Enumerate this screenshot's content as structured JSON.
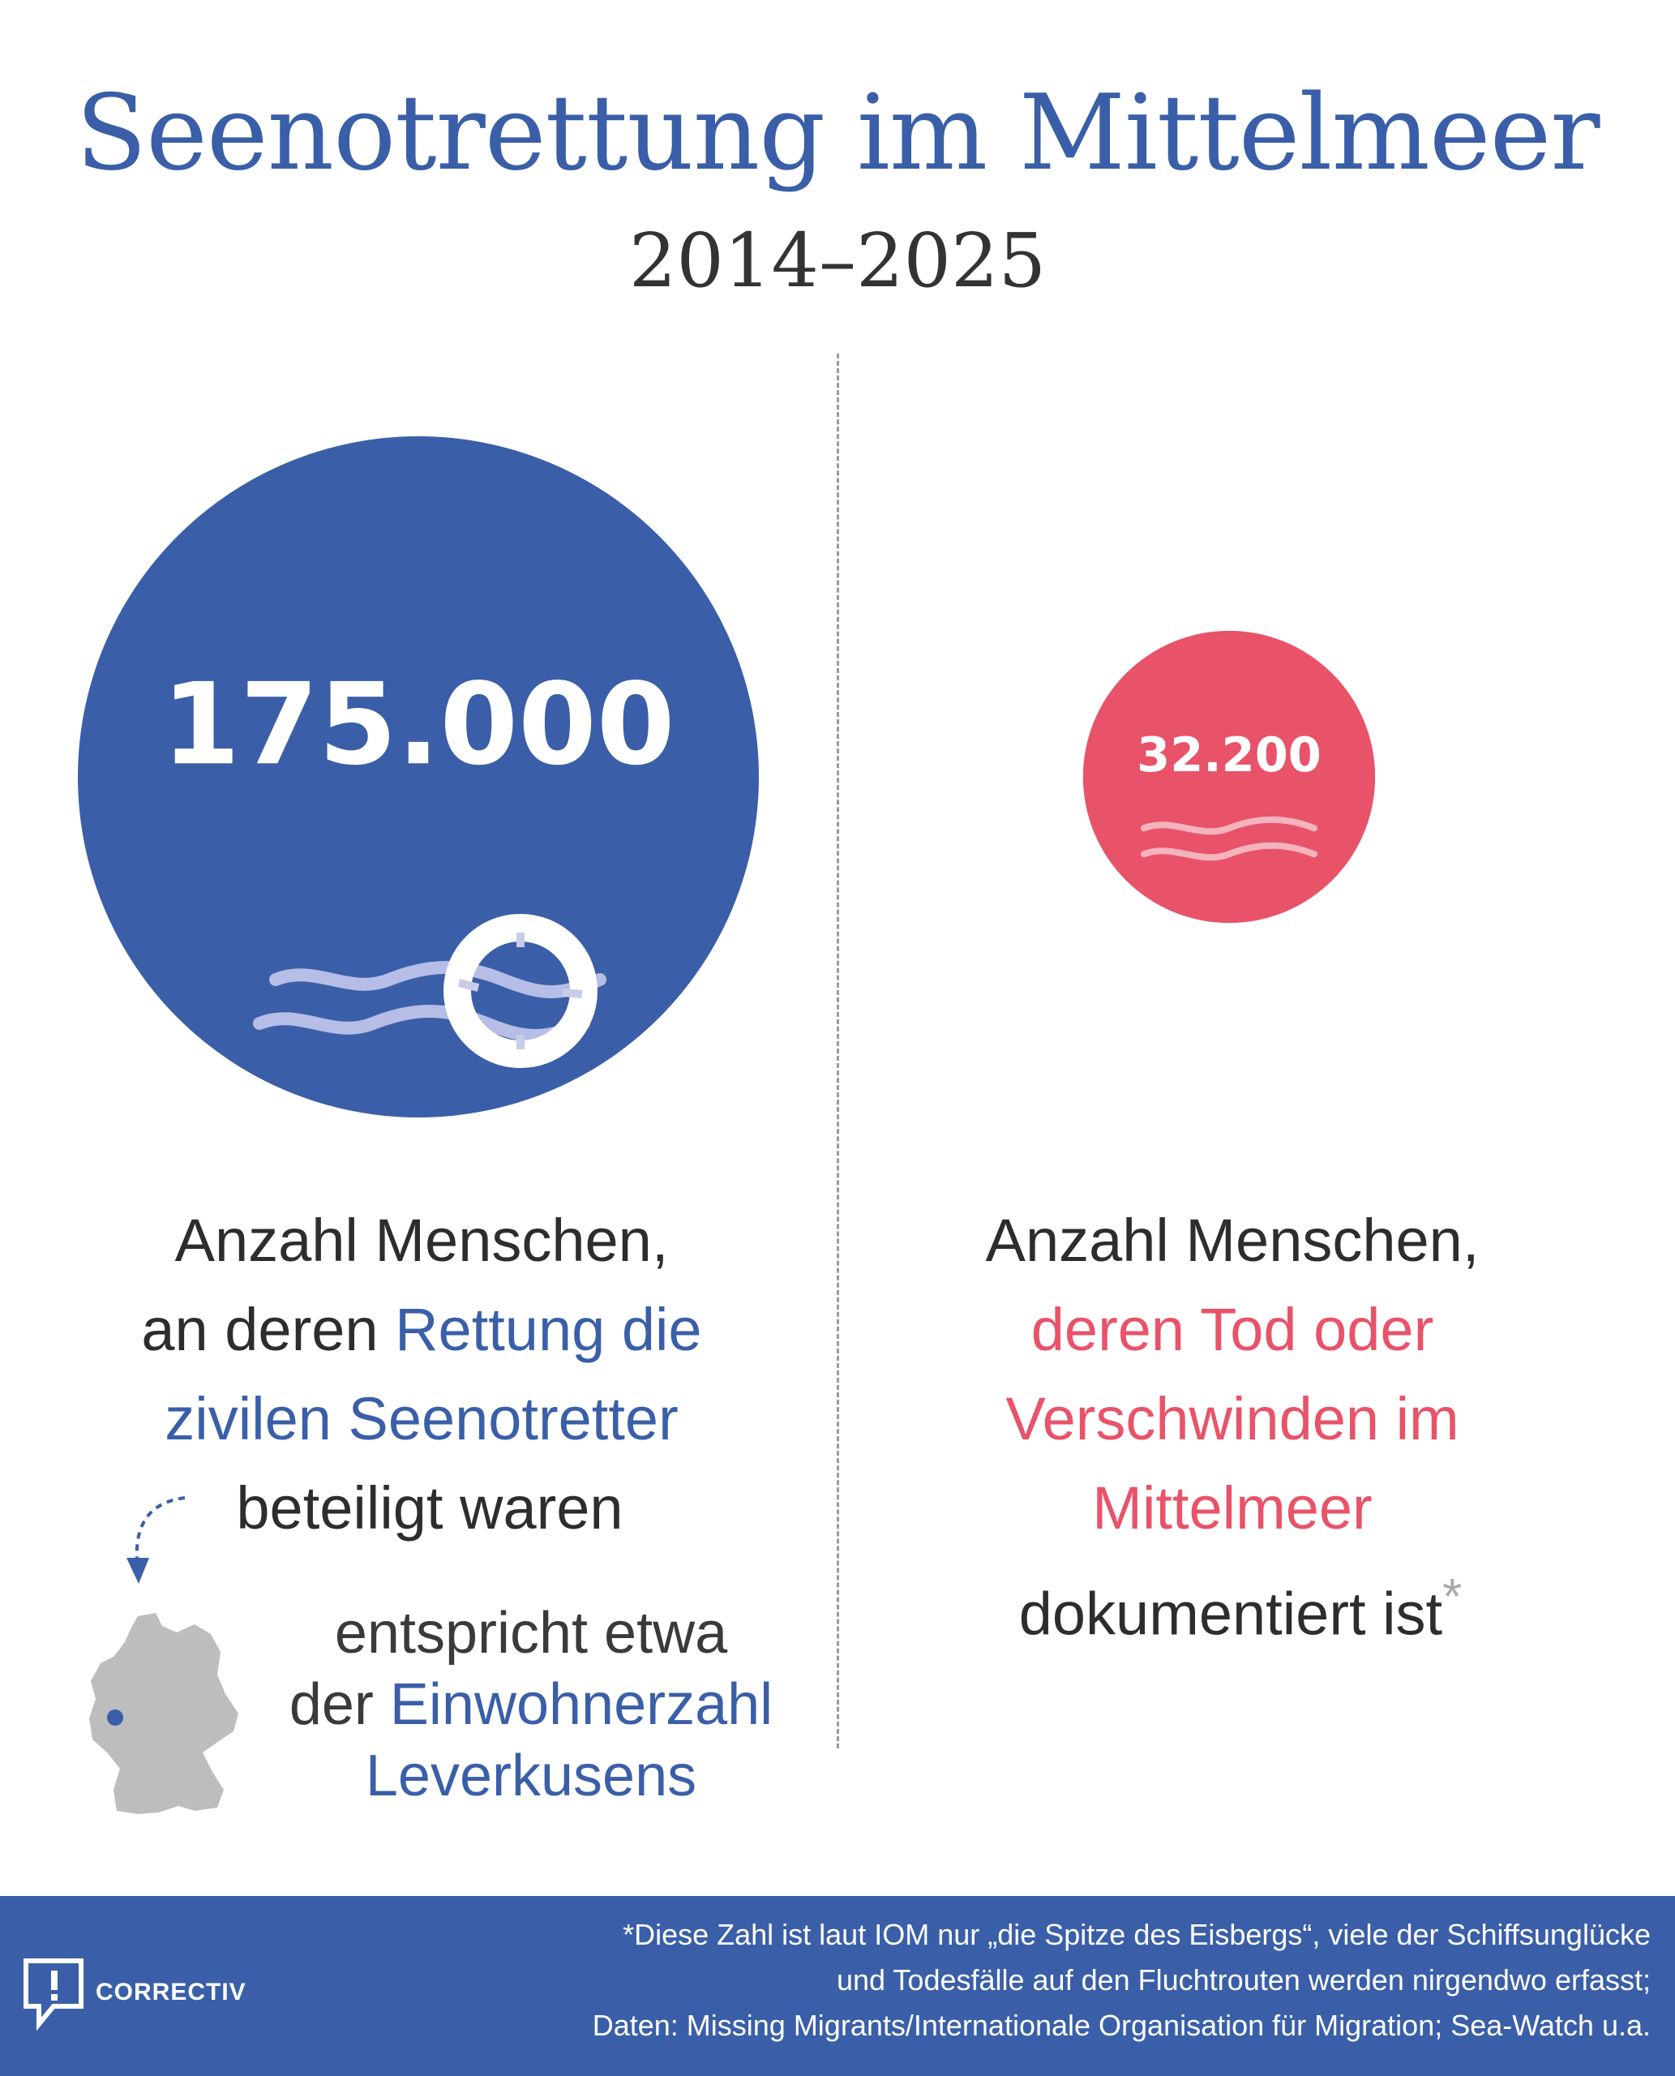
{
  "header": {
    "title": "Seenotrettung im Mittelmeer",
    "subtitle": "2014–2025"
  },
  "colors": {
    "rescue": "#3a5fa8",
    "death": "#e8536a",
    "text": "#2d2d2d",
    "footer": "#3a5fa8"
  },
  "chart_data": {
    "type": "bubble",
    "title": "Seenotrettung im Mittelmeer",
    "subtitle": "2014–2025",
    "series": [
      {
        "label": "175.000",
        "value": 175000,
        "color": "#3a5fa8",
        "icon": "lifebuoy-waves-icon"
      },
      {
        "label": "32.200",
        "value": 32200,
        "color": "#e8536a",
        "icon": "waves-icon"
      }
    ]
  },
  "rescue_caption": {
    "line1": "Anzahl Menschen,",
    "line2_prefix": "an deren ",
    "line2_highlight": "Rettung die",
    "line3_highlight": "zivilen Seenotretter",
    "line4": "beteiligt waren"
  },
  "comparison": {
    "line1": "entspricht etwa",
    "line2_prefix": "der ",
    "line2_highlight": "Einwohnerzahl",
    "line3_highlight": "Leverkusens",
    "map_icon": "germany-map-icon"
  },
  "death_caption": {
    "line1": "Anzahl Menschen,",
    "line2_highlight": "deren Tod oder",
    "line3_highlight": "Verschwinden im",
    "line4_highlight": "Mittelmeer",
    "line5": "dokumentiert ist",
    "asterisk": "*"
  },
  "footer": {
    "brand": "CORRECTIV",
    "note_line1": "*Diese Zahl ist laut IOM nur „die Spitze des Eisbergs“,  viele der Schiffsunglücke",
    "note_line2": "und Todesfälle auf den Fluchtrouten werden nirgendwo erfasst;",
    "note_line3": "Daten: Missing Migrants/Internationale Organisation für Migration; Sea-Watch u.a."
  }
}
